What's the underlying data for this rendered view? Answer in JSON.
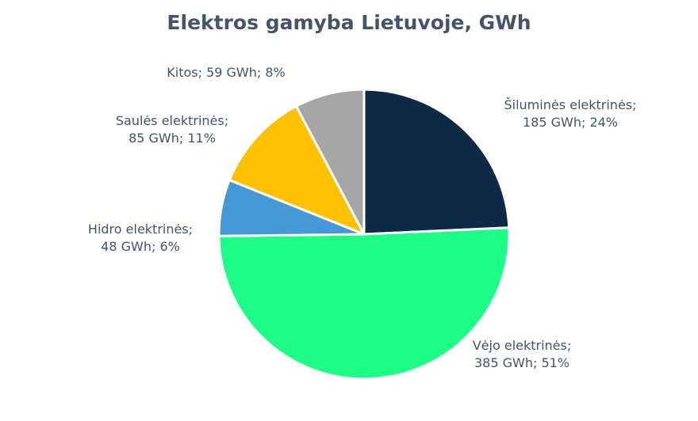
{
  "chart_data": {
    "type": "pie",
    "title": "Elektros gamyba Lietuvoje, GWh",
    "unit": "GWh",
    "slices": [
      {
        "name": "Šiluminės elektrinės",
        "value": 185,
        "percent": 24,
        "color": "#0e2a47",
        "line1": "Šiluminės elektrinės;",
        "line2": "185 GWh; 24%"
      },
      {
        "name": "Vėjo elektrinės",
        "value": 385,
        "percent": 51,
        "color": "#1dfc87",
        "line1": "Vėjo elektrinės;",
        "line2": "385 GWh; 51%"
      },
      {
        "name": "Hidro elektrinės",
        "value": 48,
        "percent": 6,
        "color": "#4499d6",
        "line1": "Hidro elektrinės;",
        "line2": "48 GWh; 6%"
      },
      {
        "name": "Saulės elektrinės",
        "value": 85,
        "percent": 11,
        "color": "#ffc000",
        "line1": "Saulės elektrinės;",
        "line2": "85 GWh; 11%"
      },
      {
        "name": "Kitos",
        "value": 59,
        "percent": 8,
        "color": "#a6a6a6",
        "line1": "Kitos; 59 GWh; 8%",
        "line2": ""
      }
    ],
    "legend": "none"
  }
}
